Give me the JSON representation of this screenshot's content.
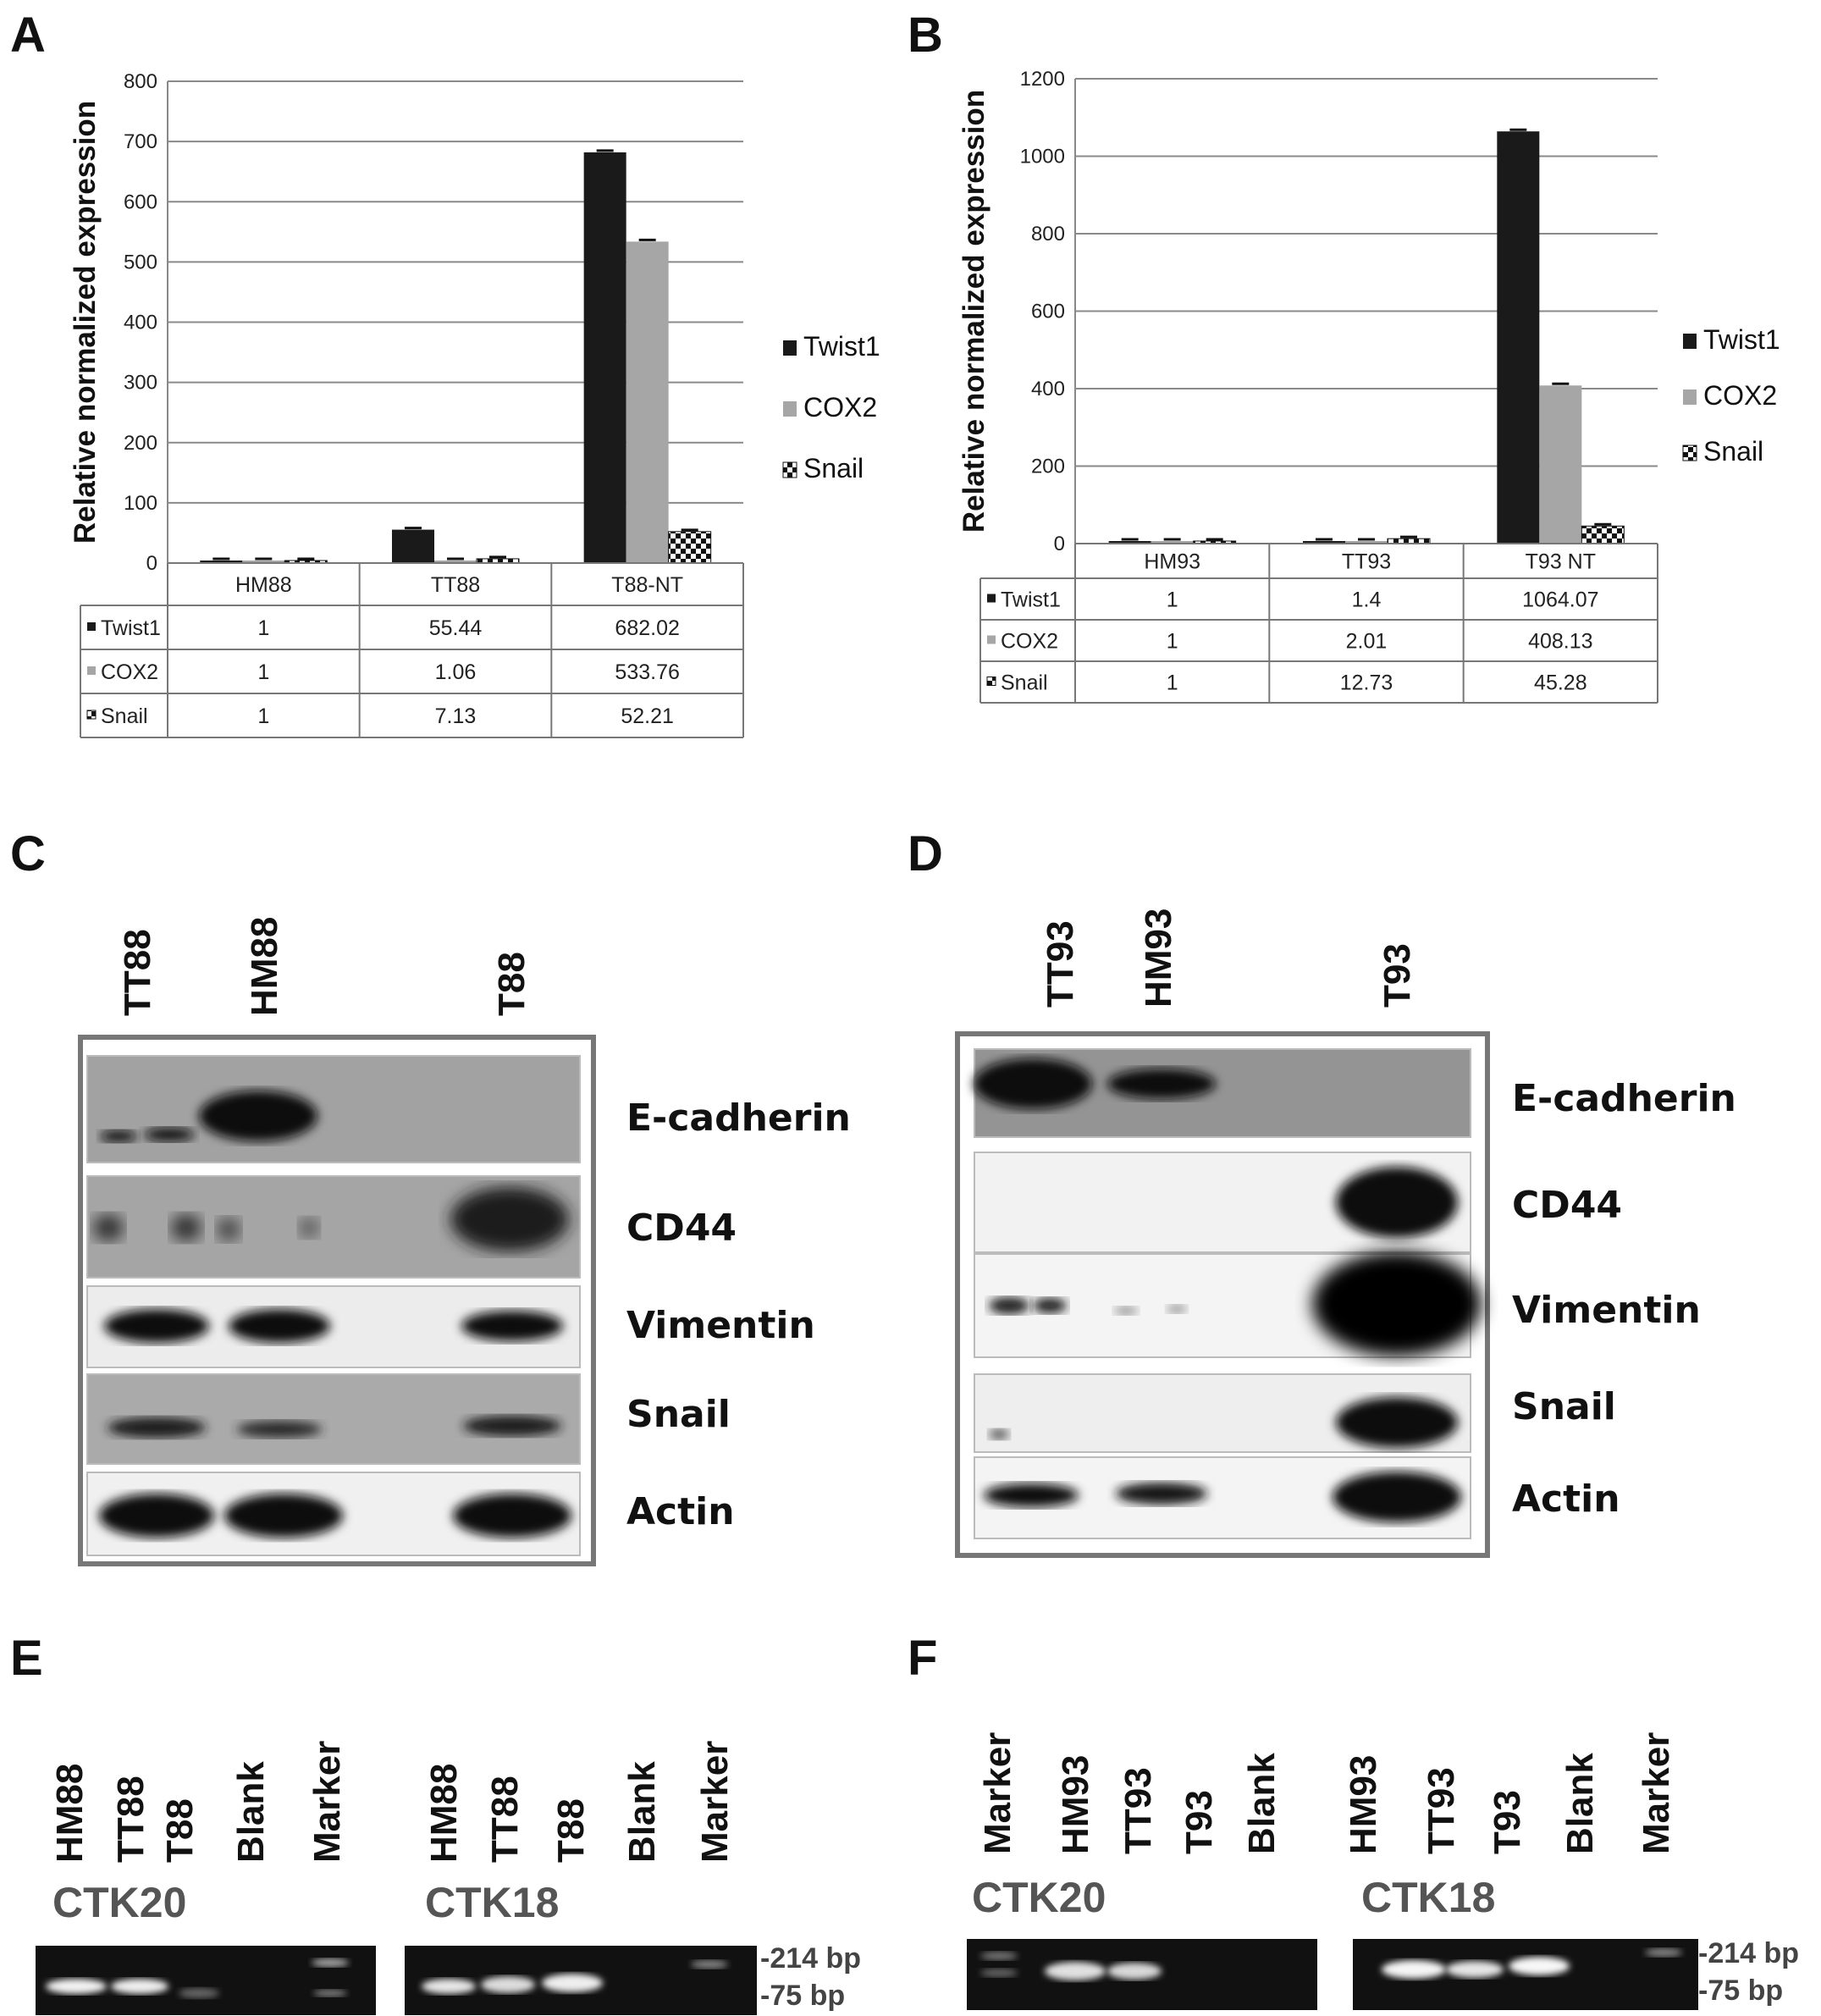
{
  "panels": {
    "A": {
      "letter": "A"
    },
    "B": {
      "letter": "B"
    },
    "C": {
      "letter": "C"
    },
    "D": {
      "letter": "D"
    },
    "E": {
      "letter": "E"
    },
    "F": {
      "letter": "F"
    }
  },
  "chart_data": [
    {
      "type": "bar",
      "panel": "A",
      "ylabel": "Relative normalized expression",
      "ylim": [
        0,
        800
      ],
      "yticks": [
        0,
        100,
        200,
        300,
        400,
        500,
        600,
        700,
        800
      ],
      "categories": [
        "HM88",
        "TT88",
        "T88-NT"
      ],
      "series": [
        {
          "name": "Twist1",
          "values": [
            1,
            55.44,
            682.02
          ],
          "display": [
            "1",
            "55.44",
            "682.02"
          ],
          "color": "#1a1a1a"
        },
        {
          "name": "COX2",
          "values": [
            1,
            1.06,
            533.76
          ],
          "display": [
            "1",
            "1.06",
            "533.76"
          ],
          "color": "#a6a6a6"
        },
        {
          "name": "Snail",
          "values": [
            1,
            7.13,
            52.21
          ],
          "display": [
            "1",
            "7.13",
            "52.21"
          ],
          "color": "checker"
        }
      ],
      "legend": "right",
      "grid": true,
      "data_table": true
    },
    {
      "type": "bar",
      "panel": "B",
      "ylabel": "Relative normalized expression",
      "ylim": [
        0,
        1200
      ],
      "yticks": [
        0,
        200,
        400,
        600,
        800,
        1000,
        1200
      ],
      "categories": [
        "HM93",
        "TT93",
        "T93 NT"
      ],
      "series": [
        {
          "name": "Twist1",
          "values": [
            1,
            1.4,
            1064.07
          ],
          "display": [
            "1",
            "1.4",
            "1064.07"
          ],
          "color": "#1a1a1a"
        },
        {
          "name": "COX2",
          "values": [
            1,
            2.01,
            408.13
          ],
          "display": [
            "1",
            "2.01",
            "408.13"
          ],
          "color": "#a6a6a6"
        },
        {
          "name": "Snail",
          "values": [
            1,
            12.73,
            45.28
          ],
          "display": [
            "1",
            "12.73",
            "45.28"
          ],
          "color": "checker"
        }
      ],
      "legend": "right",
      "grid": true,
      "data_table": true
    }
  ],
  "blot_C": {
    "lanes": [
      "TT88",
      "HM88",
      "T88"
    ],
    "proteins": [
      "E-cadherin",
      "CD44",
      "Vimentin",
      "Snail",
      "Actin"
    ]
  },
  "blot_D": {
    "lanes": [
      "TT93",
      "HM93",
      "T93"
    ],
    "proteins": [
      "E-cadherin",
      "CD44",
      "Vimentin",
      "Snail",
      "Actin"
    ]
  },
  "gel_E": {
    "left": {
      "name": "CTK20",
      "lanes": [
        "HM88",
        "TT88",
        "T88",
        "Blank",
        "Marker"
      ]
    },
    "right": {
      "name": "CTK18",
      "lanes": [
        "HM88",
        "TT88",
        "T88",
        "Blank",
        "Marker"
      ]
    },
    "markers": [
      "-214 bp",
      "-75 bp"
    ]
  },
  "gel_F": {
    "left": {
      "name": "CTK20",
      "lanes": [
        "Marker",
        "HM93",
        "TT93",
        "T93",
        "Blank"
      ]
    },
    "right": {
      "name": "CTK18",
      "lanes": [
        "HM93",
        "TT93",
        "T93",
        "Blank",
        "Marker"
      ]
    },
    "markers": [
      "-214 bp",
      "-75 bp"
    ]
  }
}
